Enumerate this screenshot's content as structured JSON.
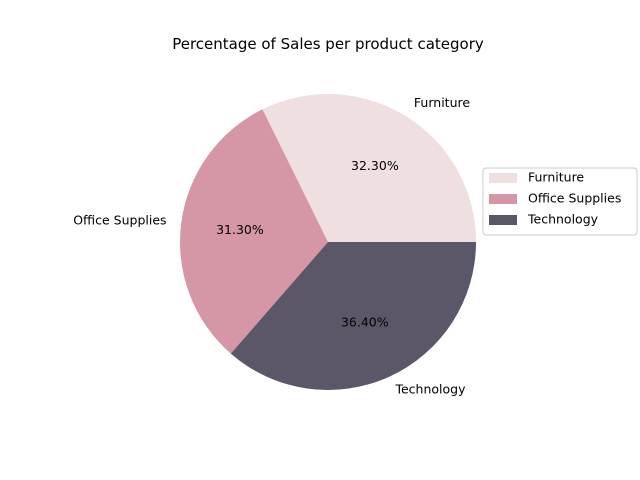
{
  "chart_data": {
    "type": "pie",
    "title": "Percentage of Sales per product category",
    "categories": [
      "Furniture",
      "Office Supplies",
      "Technology"
    ],
    "values": [
      32.3,
      31.3,
      36.4
    ],
    "value_labels": [
      "32.30%",
      "31.30%",
      "36.40%"
    ],
    "colors": [
      "#f0dfe0",
      "#d597a6",
      "#5c5669"
    ],
    "start_angle_deg": 0,
    "direction": "counterclockwise",
    "legend": {
      "placement": "right",
      "entries": [
        "Furniture",
        "Office Supplies",
        "Technology"
      ]
    }
  }
}
